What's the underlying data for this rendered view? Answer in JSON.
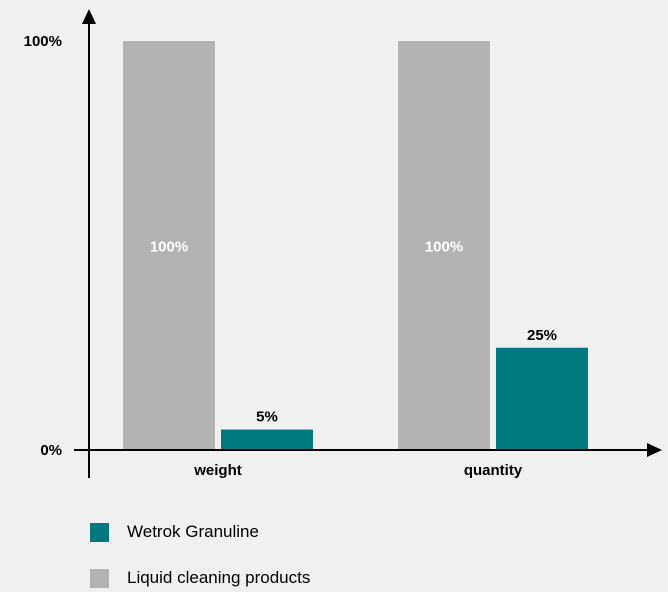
{
  "chart_data": {
    "type": "bar",
    "categories": [
      "weight",
      "quantity"
    ],
    "series": [
      {
        "name": "Liquid cleaning products",
        "values": [
          100,
          100
        ],
        "labels": [
          "100%",
          "100%"
        ],
        "color": "#b3b3b3",
        "label_color": "#ffffff"
      },
      {
        "name": "Wetrok Granuline",
        "values": [
          5,
          25
        ],
        "labels": [
          "5%",
          "25%"
        ],
        "color": "#007a7e",
        "label_color": "#000000"
      }
    ],
    "yticks": [
      {
        "value": 0,
        "label": "0%"
      },
      {
        "value": 100,
        "label": "100%"
      }
    ],
    "ylim": [
      0,
      100
    ],
    "legend_position": "bottom-left",
    "grid": false
  },
  "legend": [
    {
      "label": "Wetrok Granuline",
      "color": "#007a7e"
    },
    {
      "label": "Liquid cleaning products",
      "color": "#b3b3b3"
    }
  ]
}
